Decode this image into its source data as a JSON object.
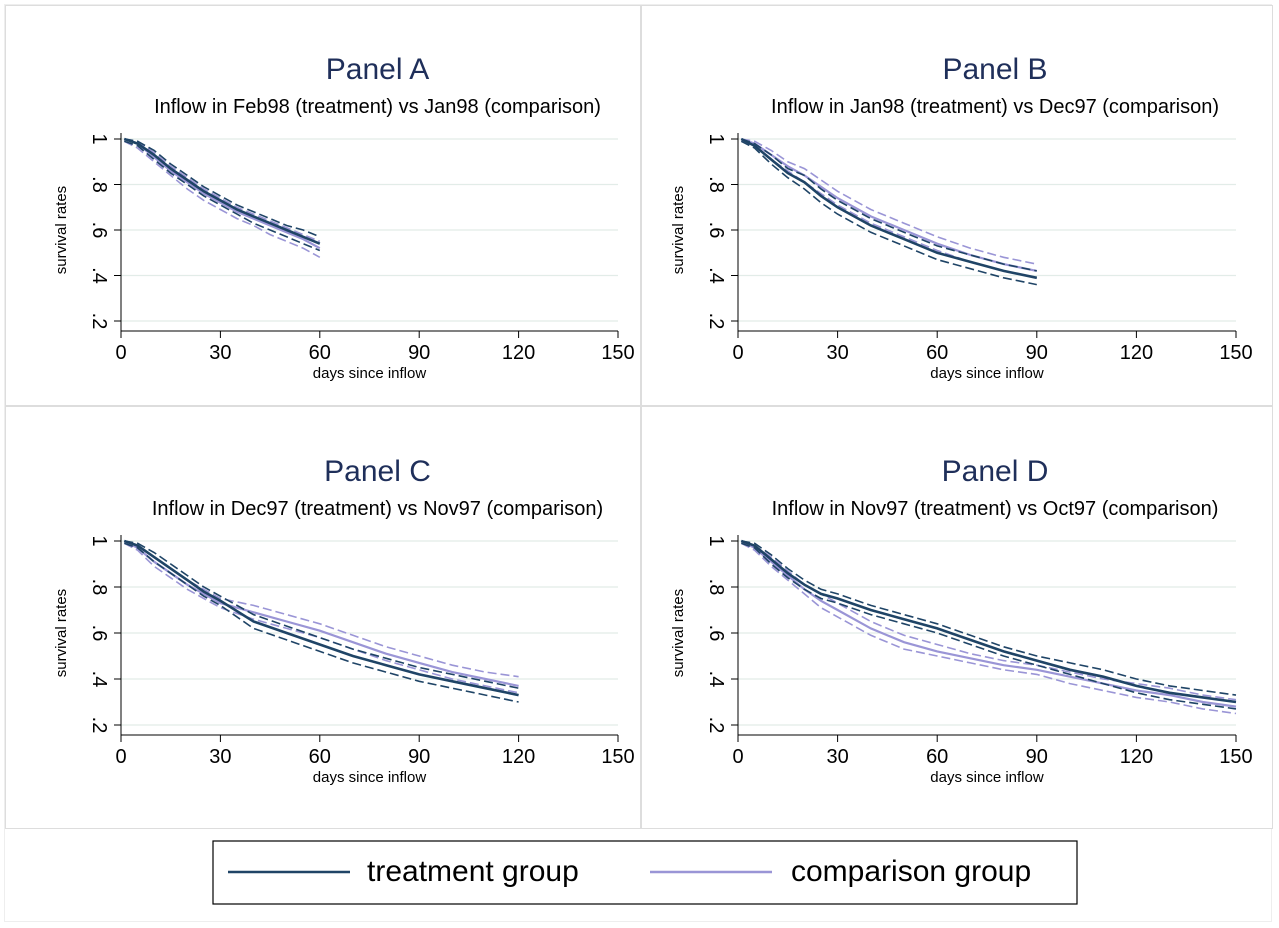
{
  "colors": {
    "treatment": "#1f4466",
    "comparison": "#9a95d6",
    "grid": "#e2ece8",
    "panel_border": "#dddddd",
    "title": "#1f2f5a",
    "axis": "#000000"
  },
  "legend": {
    "treatment_label": "treatment group",
    "comparison_label": "comparison group",
    "placement": "bottom-center"
  },
  "chart_data": [
    {
      "type": "line",
      "title": "Panel A",
      "subtitle": "Inflow in Feb98 (treatment) vs Jan98 (comparison)",
      "xlabel": "days since inflow",
      "ylabel": "survival rates",
      "xlim": [
        0,
        150
      ],
      "ylim": [
        0.2,
        1
      ],
      "xticks": [
        "0",
        "30",
        "60",
        "90",
        "120",
        "150"
      ],
      "yticks": [
        ".2",
        ".4",
        ".6",
        ".8",
        "1"
      ],
      "grid": true,
      "series": [
        {
          "name": "treatment group",
          "role": "treatment",
          "x": [
            1,
            5,
            10,
            15,
            20,
            25,
            30,
            35,
            40,
            45,
            50,
            55,
            60
          ],
          "y": [
            1.0,
            0.98,
            0.93,
            0.87,
            0.82,
            0.77,
            0.73,
            0.69,
            0.66,
            0.63,
            0.6,
            0.57,
            0.54
          ],
          "ci_lower": [
            0.99,
            0.97,
            0.91,
            0.85,
            0.8,
            0.75,
            0.71,
            0.67,
            0.63,
            0.6,
            0.57,
            0.54,
            0.51
          ],
          "ci_upper": [
            1.0,
            0.99,
            0.95,
            0.89,
            0.84,
            0.79,
            0.75,
            0.71,
            0.68,
            0.65,
            0.62,
            0.6,
            0.57
          ]
        },
        {
          "name": "comparison group",
          "role": "comparison",
          "x": [
            1,
            5,
            10,
            15,
            20,
            25,
            30,
            35,
            40,
            45,
            50,
            55,
            60
          ],
          "y": [
            1.0,
            0.98,
            0.92,
            0.86,
            0.81,
            0.76,
            0.72,
            0.68,
            0.65,
            0.62,
            0.59,
            0.56,
            0.52
          ],
          "ci_lower": [
            0.99,
            0.96,
            0.9,
            0.84,
            0.78,
            0.73,
            0.69,
            0.65,
            0.62,
            0.58,
            0.55,
            0.52,
            0.48
          ],
          "ci_upper": [
            1.0,
            0.99,
            0.94,
            0.88,
            0.83,
            0.78,
            0.74,
            0.7,
            0.67,
            0.64,
            0.61,
            0.58,
            0.55
          ]
        }
      ]
    },
    {
      "type": "line",
      "title": "Panel B",
      "subtitle": "Inflow in Jan98 (treatment) vs Dec97 (comparison)",
      "xlabel": "days since inflow",
      "ylabel": "survival rates",
      "xlim": [
        0,
        150
      ],
      "ylim": [
        0.2,
        1
      ],
      "xticks": [
        "0",
        "30",
        "60",
        "90",
        "120",
        "150"
      ],
      "yticks": [
        ".2",
        ".4",
        ".6",
        ".8",
        "1"
      ],
      "grid": true,
      "series": [
        {
          "name": "treatment group",
          "role": "treatment",
          "x": [
            1,
            5,
            10,
            15,
            20,
            25,
            30,
            40,
            50,
            60,
            70,
            80,
            90
          ],
          "y": [
            1.0,
            0.97,
            0.91,
            0.85,
            0.81,
            0.75,
            0.7,
            0.62,
            0.56,
            0.5,
            0.46,
            0.42,
            0.39
          ],
          "ci_lower": [
            0.99,
            0.96,
            0.89,
            0.83,
            0.78,
            0.72,
            0.67,
            0.59,
            0.53,
            0.47,
            0.43,
            0.39,
            0.36
          ],
          "ci_upper": [
            1.0,
            0.98,
            0.93,
            0.87,
            0.84,
            0.78,
            0.73,
            0.65,
            0.59,
            0.53,
            0.49,
            0.45,
            0.42
          ]
        },
        {
          "name": "comparison group",
          "role": "comparison",
          "x": [
            1,
            5,
            10,
            15,
            20,
            25,
            30,
            40,
            50,
            60,
            70,
            80,
            90
          ],
          "y": [
            1.0,
            0.98,
            0.93,
            0.88,
            0.84,
            0.79,
            0.74,
            0.66,
            0.6,
            0.54,
            0.49,
            0.45,
            0.42
          ],
          "ci_lower": [
            0.99,
            0.97,
            0.91,
            0.86,
            0.81,
            0.76,
            0.71,
            0.63,
            0.57,
            0.51,
            0.46,
            0.42,
            0.39
          ],
          "ci_upper": [
            1.0,
            0.99,
            0.95,
            0.9,
            0.87,
            0.82,
            0.77,
            0.69,
            0.63,
            0.57,
            0.52,
            0.48,
            0.45
          ]
        }
      ]
    },
    {
      "type": "line",
      "title": "Panel C",
      "subtitle": "Inflow in Dec97 (treatment) vs Nov97 (comparison)",
      "xlabel": "days since inflow",
      "ylabel": "survival rates",
      "xlim": [
        0,
        150
      ],
      "ylim": [
        0.2,
        1
      ],
      "xticks": [
        "0",
        "30",
        "60",
        "90",
        "120",
        "150"
      ],
      "yticks": [
        ".2",
        ".4",
        ".6",
        ".8",
        "1"
      ],
      "grid": true,
      "series": [
        {
          "name": "treatment group",
          "role": "treatment",
          "x": [
            1,
            5,
            10,
            15,
            20,
            25,
            30,
            40,
            50,
            60,
            70,
            80,
            90,
            100,
            110,
            120
          ],
          "y": [
            1.0,
            0.98,
            0.93,
            0.88,
            0.83,
            0.78,
            0.74,
            0.65,
            0.6,
            0.55,
            0.5,
            0.46,
            0.42,
            0.39,
            0.36,
            0.33
          ],
          "ci_lower": [
            0.99,
            0.97,
            0.91,
            0.86,
            0.81,
            0.76,
            0.72,
            0.62,
            0.57,
            0.52,
            0.47,
            0.43,
            0.39,
            0.36,
            0.33,
            0.3
          ],
          "ci_upper": [
            1.0,
            0.99,
            0.95,
            0.9,
            0.85,
            0.8,
            0.76,
            0.68,
            0.63,
            0.58,
            0.53,
            0.49,
            0.45,
            0.42,
            0.39,
            0.36
          ]
        },
        {
          "name": "comparison group",
          "role": "comparison",
          "x": [
            1,
            5,
            10,
            15,
            20,
            25,
            30,
            40,
            50,
            60,
            70,
            80,
            90,
            100,
            110,
            120
          ],
          "y": [
            1.0,
            0.97,
            0.91,
            0.86,
            0.81,
            0.77,
            0.73,
            0.69,
            0.65,
            0.61,
            0.56,
            0.51,
            0.47,
            0.43,
            0.4,
            0.37
          ],
          "ci_lower": [
            0.99,
            0.96,
            0.89,
            0.84,
            0.79,
            0.75,
            0.71,
            0.66,
            0.62,
            0.58,
            0.53,
            0.48,
            0.44,
            0.4,
            0.37,
            0.34
          ],
          "ci_upper": [
            1.0,
            0.98,
            0.93,
            0.88,
            0.83,
            0.79,
            0.75,
            0.72,
            0.68,
            0.64,
            0.59,
            0.54,
            0.5,
            0.46,
            0.43,
            0.41
          ]
        }
      ]
    },
    {
      "type": "line",
      "title": "Panel D",
      "subtitle": "Inflow in Nov97 (treatment) vs Oct97 (comparison)",
      "xlabel": "days since inflow",
      "ylabel": "survival rates",
      "xlim": [
        0,
        150
      ],
      "ylim": [
        0.2,
        1
      ],
      "xticks": [
        "0",
        "30",
        "60",
        "90",
        "120",
        "150"
      ],
      "yticks": [
        ".2",
        ".4",
        ".6",
        ".8",
        "1"
      ],
      "grid": true,
      "series": [
        {
          "name": "treatment group",
          "role": "treatment",
          "x": [
            1,
            5,
            10,
            15,
            20,
            25,
            30,
            40,
            50,
            60,
            70,
            80,
            90,
            100,
            110,
            120,
            130,
            140,
            150
          ],
          "y": [
            1.0,
            0.98,
            0.92,
            0.86,
            0.81,
            0.77,
            0.75,
            0.7,
            0.66,
            0.62,
            0.57,
            0.52,
            0.48,
            0.44,
            0.41,
            0.37,
            0.34,
            0.32,
            0.3
          ],
          "ci_lower": [
            0.99,
            0.97,
            0.9,
            0.84,
            0.79,
            0.75,
            0.73,
            0.68,
            0.64,
            0.6,
            0.55,
            0.5,
            0.46,
            0.42,
            0.38,
            0.34,
            0.31,
            0.29,
            0.27
          ],
          "ci_upper": [
            1.0,
            0.99,
            0.94,
            0.88,
            0.83,
            0.79,
            0.77,
            0.72,
            0.68,
            0.64,
            0.59,
            0.54,
            0.5,
            0.47,
            0.44,
            0.4,
            0.37,
            0.35,
            0.33
          ]
        },
        {
          "name": "comparison group",
          "role": "comparison",
          "x": [
            1,
            5,
            10,
            15,
            20,
            25,
            30,
            40,
            50,
            60,
            70,
            80,
            90,
            100,
            110,
            120,
            130,
            140,
            150
          ],
          "y": [
            1.0,
            0.97,
            0.91,
            0.85,
            0.79,
            0.74,
            0.7,
            0.62,
            0.56,
            0.52,
            0.49,
            0.46,
            0.44,
            0.41,
            0.38,
            0.35,
            0.33,
            0.3,
            0.28
          ],
          "ci_lower": [
            0.99,
            0.96,
            0.89,
            0.83,
            0.77,
            0.71,
            0.67,
            0.59,
            0.53,
            0.5,
            0.47,
            0.44,
            0.42,
            0.38,
            0.35,
            0.32,
            0.3,
            0.27,
            0.25
          ],
          "ci_upper": [
            1.0,
            0.98,
            0.93,
            0.87,
            0.81,
            0.77,
            0.73,
            0.65,
            0.59,
            0.55,
            0.51,
            0.48,
            0.46,
            0.43,
            0.4,
            0.38,
            0.36,
            0.33,
            0.31
          ]
        }
      ]
    }
  ]
}
